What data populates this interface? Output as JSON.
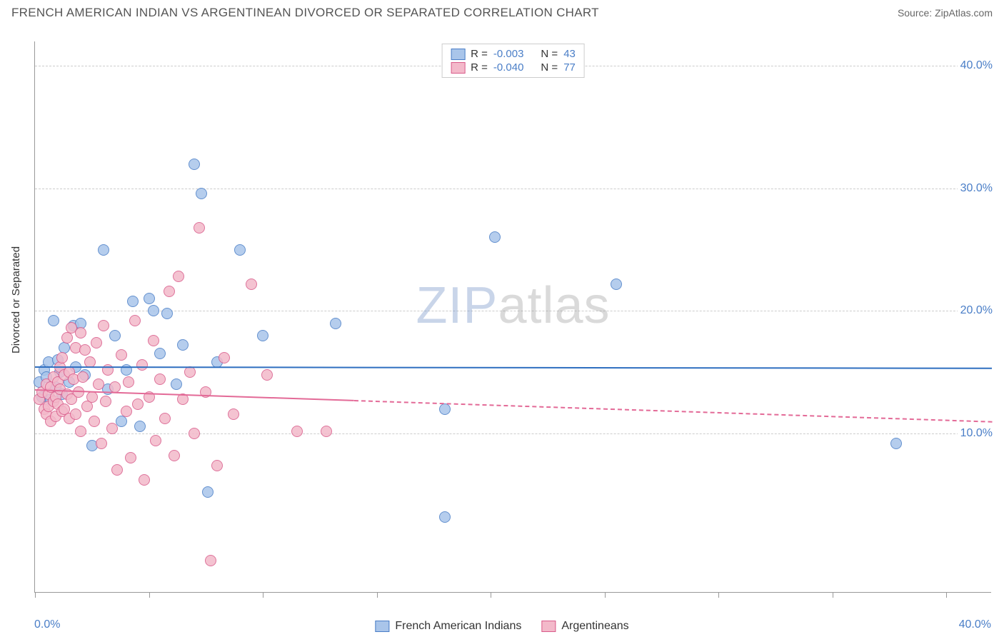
{
  "header": {
    "title": "FRENCH AMERICAN INDIAN VS ARGENTINEAN DIVORCED OR SEPARATED CORRELATION CHART",
    "source_label": "Source: ",
    "source_value": "ZipAtlas.com"
  },
  "chart": {
    "type": "scatter",
    "y_axis_title": "Divorced or Separated",
    "xlim": [
      0,
      42
    ],
    "ylim": [
      -3,
      42
    ],
    "x_ticks": [
      0,
      5,
      10,
      15,
      20,
      25,
      30,
      35,
      40
    ],
    "x_tick_labels_shown": {
      "min": "0.0%",
      "max": "40.0%"
    },
    "y_gridlines": [
      10,
      20,
      30,
      40
    ],
    "y_tick_labels": [
      "10.0%",
      "20.0%",
      "30.0%",
      "40.0%"
    ],
    "background_color": "#ffffff",
    "grid_color": "#cccccc",
    "axis_color": "#999999",
    "tick_label_color": "#4a7ec7",
    "point_radius": 8,
    "point_stroke_width": 1.2,
    "point_fill_opacity": 0.35,
    "series": [
      {
        "name": "French American Indians",
        "fill_color": "#a9c5ea",
        "stroke_color": "#4a7ec7",
        "R": "-0.003",
        "N": "43",
        "trend": {
          "y_start": 15.5,
          "y_end": 15.4,
          "solid_x_end": 42,
          "color": "#2f6fc0"
        },
        "points": [
          [
            0.2,
            14.2
          ],
          [
            0.3,
            13.0
          ],
          [
            0.4,
            15.2
          ],
          [
            0.5,
            14.6
          ],
          [
            0.6,
            15.8
          ],
          [
            0.7,
            12.8
          ],
          [
            0.8,
            19.2
          ],
          [
            0.9,
            13.8
          ],
          [
            1.0,
            16.0
          ],
          [
            1.1,
            15.0
          ],
          [
            1.2,
            13.2
          ],
          [
            1.3,
            17.0
          ],
          [
            1.5,
            14.2
          ],
          [
            1.7,
            18.8
          ],
          [
            1.8,
            15.4
          ],
          [
            2.0,
            19.0
          ],
          [
            2.2,
            14.8
          ],
          [
            2.5,
            9.0
          ],
          [
            3.0,
            25.0
          ],
          [
            3.2,
            13.6
          ],
          [
            3.5,
            18.0
          ],
          [
            4.0,
            15.2
          ],
          [
            4.3,
            20.8
          ],
          [
            4.6,
            10.6
          ],
          [
            5.0,
            21.0
          ],
          [
            5.2,
            20.0
          ],
          [
            5.5,
            16.5
          ],
          [
            5.8,
            19.8
          ],
          [
            6.2,
            14.0
          ],
          [
            6.5,
            17.2
          ],
          [
            7.0,
            32.0
          ],
          [
            7.3,
            29.6
          ],
          [
            7.6,
            5.2
          ],
          [
            8.0,
            15.8
          ],
          [
            9.0,
            25.0
          ],
          [
            10.0,
            18.0
          ],
          [
            13.2,
            19.0
          ],
          [
            18.0,
            12.0
          ],
          [
            18.0,
            3.2
          ],
          [
            20.2,
            26.0
          ],
          [
            25.5,
            22.2
          ],
          [
            37.8,
            9.2
          ],
          [
            3.8,
            11.0
          ]
        ]
      },
      {
        "name": "Argentineans",
        "fill_color": "#f3b9ca",
        "stroke_color": "#d95b8a",
        "R": "-0.040",
        "N": "77",
        "trend": {
          "y_start": 13.6,
          "y_end": 11.0,
          "solid_x_end": 14,
          "color": "#e36a97"
        },
        "points": [
          [
            0.2,
            12.8
          ],
          [
            0.3,
            13.4
          ],
          [
            0.4,
            12.0
          ],
          [
            0.5,
            14.0
          ],
          [
            0.5,
            11.6
          ],
          [
            0.6,
            13.2
          ],
          [
            0.6,
            12.2
          ],
          [
            0.7,
            13.8
          ],
          [
            0.7,
            11.0
          ],
          [
            0.8,
            12.6
          ],
          [
            0.8,
            14.6
          ],
          [
            0.9,
            13.0
          ],
          [
            0.9,
            11.4
          ],
          [
            1.0,
            14.2
          ],
          [
            1.0,
            12.4
          ],
          [
            1.1,
            15.4
          ],
          [
            1.1,
            13.6
          ],
          [
            1.2,
            11.8
          ],
          [
            1.2,
            16.2
          ],
          [
            1.3,
            14.8
          ],
          [
            1.3,
            12.0
          ],
          [
            1.4,
            17.8
          ],
          [
            1.4,
            13.2
          ],
          [
            1.5,
            11.2
          ],
          [
            1.5,
            15.0
          ],
          [
            1.6,
            18.6
          ],
          [
            1.6,
            12.8
          ],
          [
            1.7,
            14.4
          ],
          [
            1.8,
            17.0
          ],
          [
            1.8,
            11.6
          ],
          [
            1.9,
            13.4
          ],
          [
            2.0,
            10.2
          ],
          [
            2.0,
            18.2
          ],
          [
            2.1,
            14.6
          ],
          [
            2.2,
            16.8
          ],
          [
            2.3,
            12.2
          ],
          [
            2.4,
            15.8
          ],
          [
            2.5,
            13.0
          ],
          [
            2.6,
            11.0
          ],
          [
            2.7,
            17.4
          ],
          [
            2.8,
            14.0
          ],
          [
            2.9,
            9.2
          ],
          [
            3.0,
            18.8
          ],
          [
            3.1,
            12.6
          ],
          [
            3.2,
            15.2
          ],
          [
            3.4,
            10.4
          ],
          [
            3.5,
            13.8
          ],
          [
            3.6,
            7.0
          ],
          [
            3.8,
            16.4
          ],
          [
            4.0,
            11.8
          ],
          [
            4.1,
            14.2
          ],
          [
            4.2,
            8.0
          ],
          [
            4.4,
            19.2
          ],
          [
            4.5,
            12.4
          ],
          [
            4.7,
            15.6
          ],
          [
            4.8,
            6.2
          ],
          [
            5.0,
            13.0
          ],
          [
            5.2,
            17.6
          ],
          [
            5.3,
            9.4
          ],
          [
            5.5,
            14.4
          ],
          [
            5.7,
            11.2
          ],
          [
            5.9,
            21.6
          ],
          [
            6.1,
            8.2
          ],
          [
            6.3,
            22.8
          ],
          [
            6.5,
            12.8
          ],
          [
            6.8,
            15.0
          ],
          [
            7.0,
            10.0
          ],
          [
            7.2,
            26.8
          ],
          [
            7.5,
            13.4
          ],
          [
            7.7,
            -0.4
          ],
          [
            8.0,
            7.4
          ],
          [
            8.3,
            16.2
          ],
          [
            8.7,
            11.6
          ],
          [
            9.5,
            22.2
          ],
          [
            10.2,
            14.8
          ],
          [
            11.5,
            10.2
          ],
          [
            12.8,
            10.2
          ]
        ]
      }
    ],
    "legend_top": {
      "R_label": "R =",
      "N_label": "N ="
    },
    "legend_bottom": {
      "items": [
        "French American Indians",
        "Argentineans"
      ]
    },
    "watermark": {
      "part1": "ZIP",
      "part2": "atlas"
    }
  }
}
